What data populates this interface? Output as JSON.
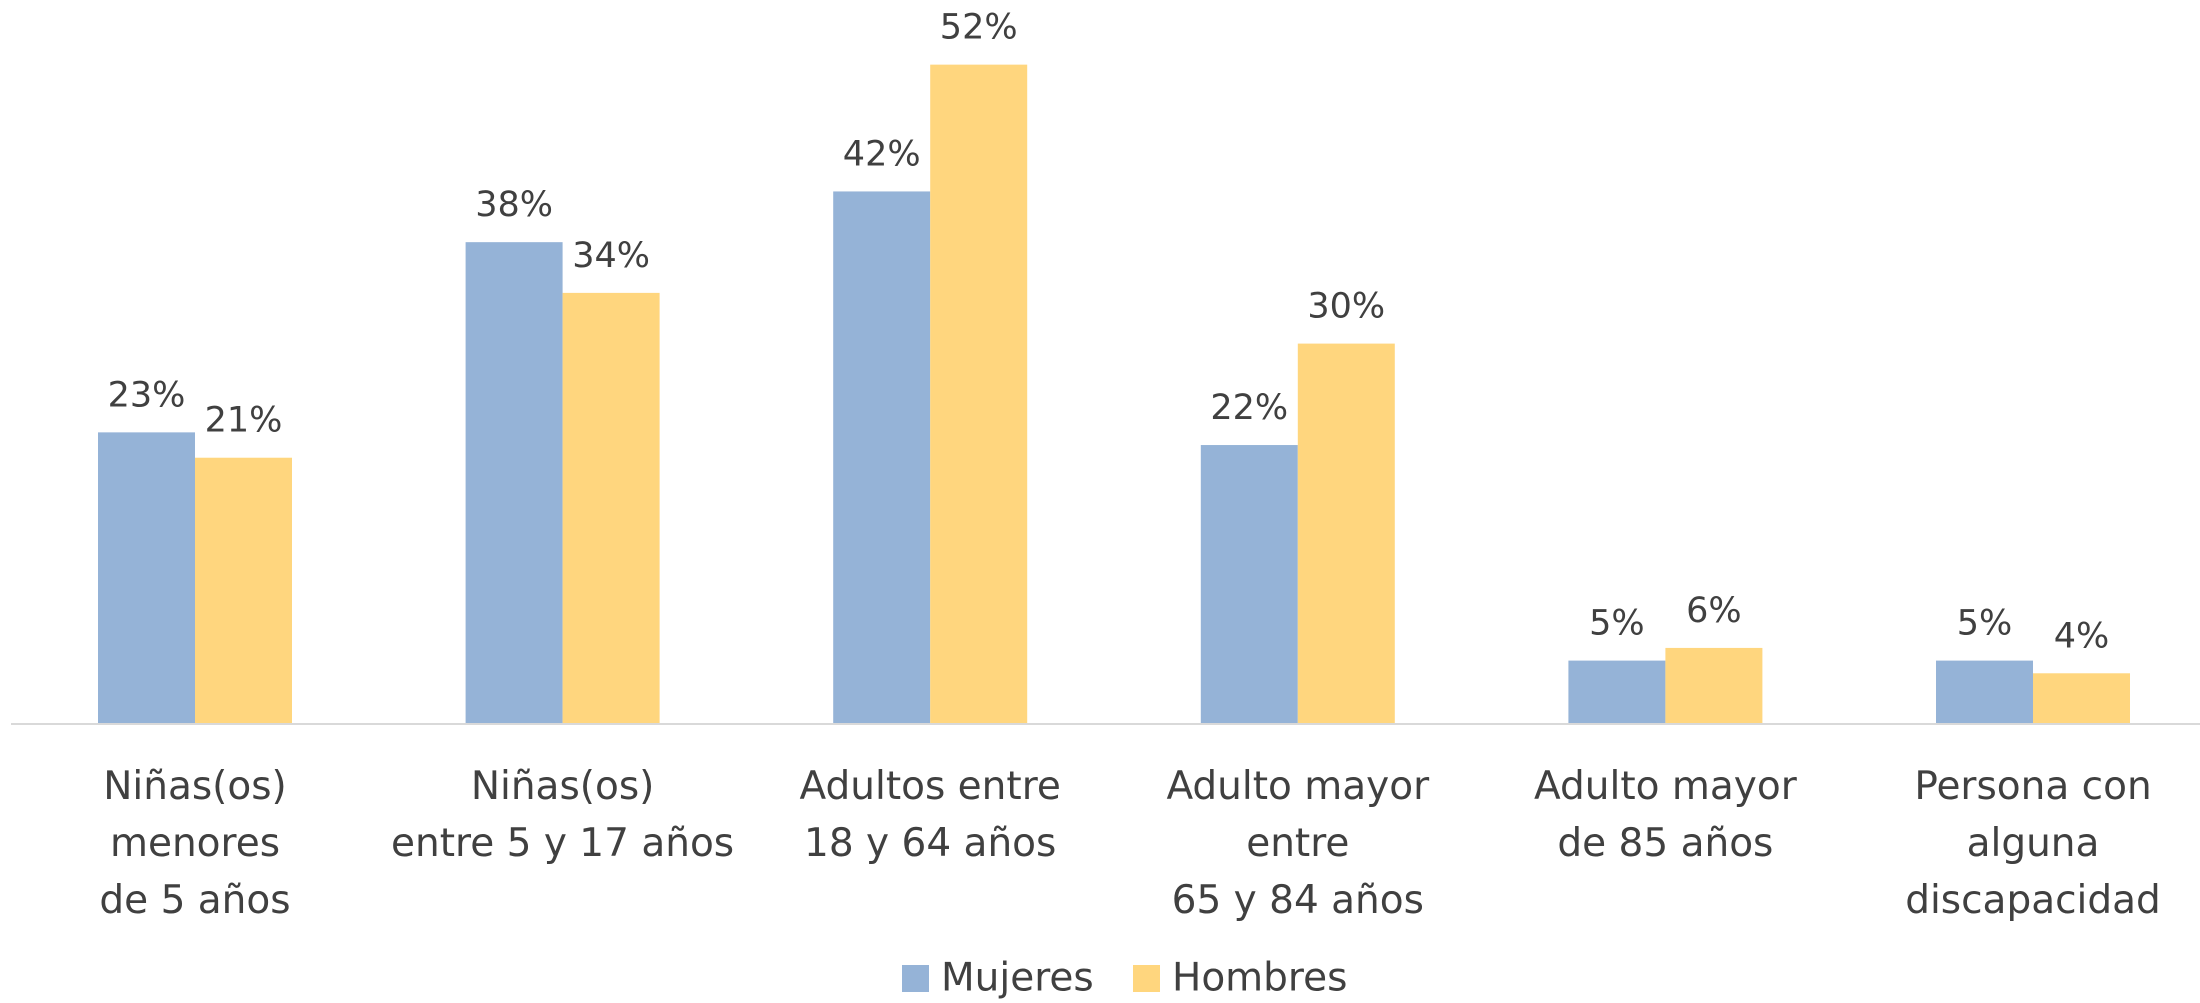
{
  "chart_data": {
    "type": "bar",
    "categories": [
      "Niñas(os)\nmenores\nde 5 años",
      "Niñas(os)\nentre 5 y 17 años",
      "Adultos entre\n18 y 64 años",
      "Adulto mayor\nentre\n65 y 84 años",
      "Adulto mayor\nde 85 años",
      "Persona con\nalguna\ndiscapacidad"
    ],
    "series": [
      {
        "name": "Mujeres",
        "color": "#95b3d7",
        "values": [
          23,
          38,
          42,
          22,
          5,
          5
        ],
        "value_labels": [
          "23%",
          "38%",
          "42%",
          "22%",
          "5%",
          "5%"
        ]
      },
      {
        "name": "Hombres",
        "color": "#ffd67e",
        "values": [
          21,
          34,
          52,
          30,
          6,
          4
        ],
        "value_labels": [
          "21%",
          "34%",
          "52%",
          "30%",
          "6%",
          "4%"
        ]
      }
    ],
    "legend": "bottom"
  }
}
